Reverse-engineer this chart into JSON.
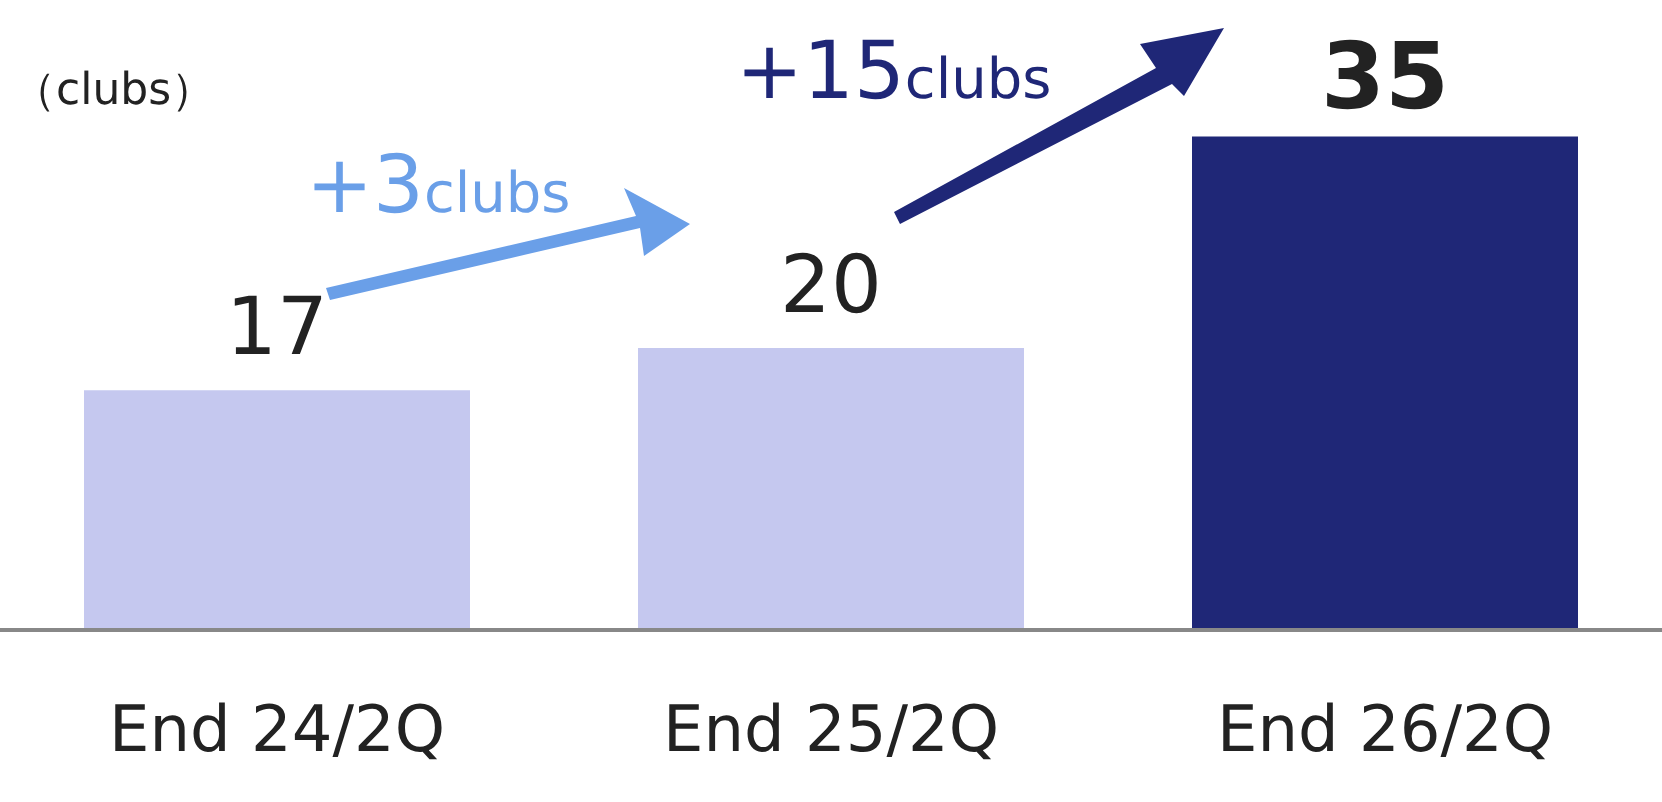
{
  "chart_data": {
    "type": "bar",
    "ylabel": "（clubs）",
    "categories": [
      "End 24/2Q",
      "End 25/2Q",
      "End 26/2Q"
    ],
    "values": [
      17,
      20,
      35
    ],
    "colors": [
      "#c5c8ef",
      "#c5c8ef",
      "#1f2777"
    ],
    "data_labels": true,
    "annotations": [
      "+3clubs",
      "+15clubs"
    ]
  }
}
